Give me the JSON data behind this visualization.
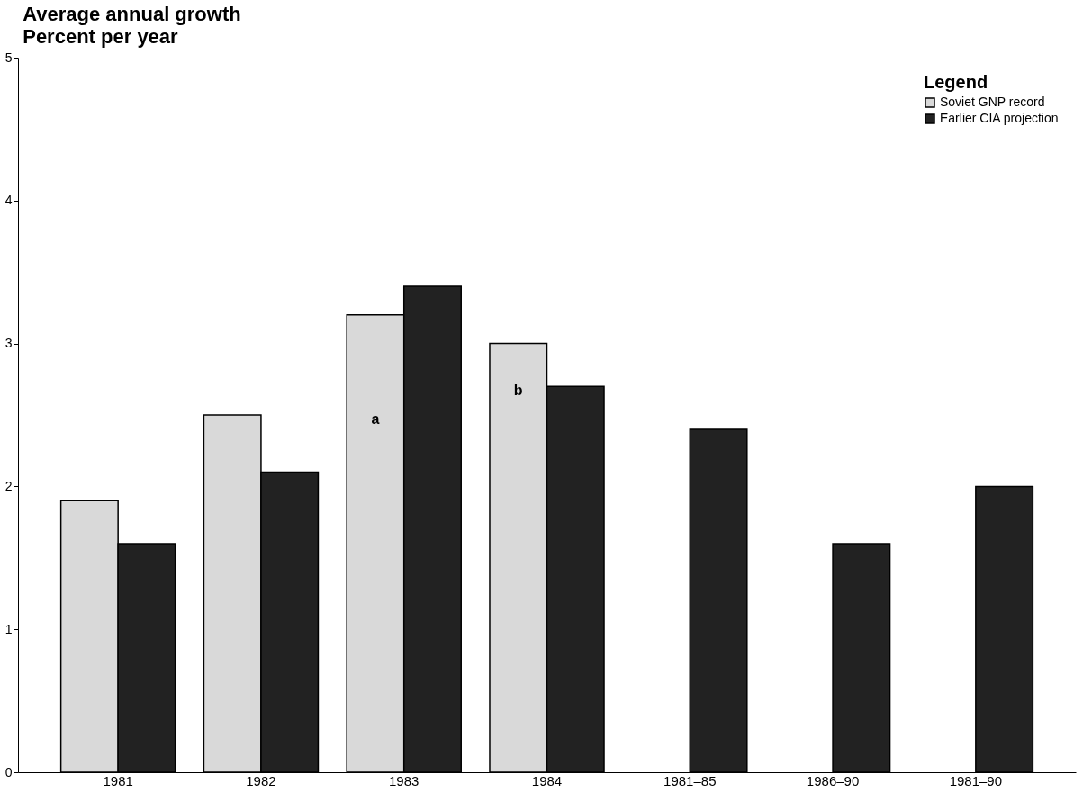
{
  "chart_data": {
    "type": "bar",
    "title": "Average annual growth",
    "subtitle": "Percent per year",
    "categories": [
      "1981",
      "1982",
      "1983",
      "1984",
      "1981–85",
      "1986–90",
      "1981–90"
    ],
    "series": [
      {
        "name": "Soviet GNP record",
        "color": "#d9d9d9",
        "values": [
          1.9,
          2.5,
          3.2,
          3.0,
          null,
          null,
          null
        ]
      },
      {
        "name": "Earlier CIA projection",
        "color": "#222222",
        "values": [
          1.6,
          2.1,
          3.4,
          2.7,
          2.4,
          1.6,
          2.0
        ]
      }
    ],
    "ylim": [
      0,
      5
    ],
    "yticks": [
      0,
      1,
      2,
      3,
      4,
      5
    ],
    "grid": false,
    "legend": "top right",
    "legend_title": "Legend",
    "annotations": [
      {
        "text": "a",
        "x": "1983",
        "y": 2.47
      },
      {
        "text": "b",
        "x": "1984",
        "y": 2.67
      }
    ]
  }
}
